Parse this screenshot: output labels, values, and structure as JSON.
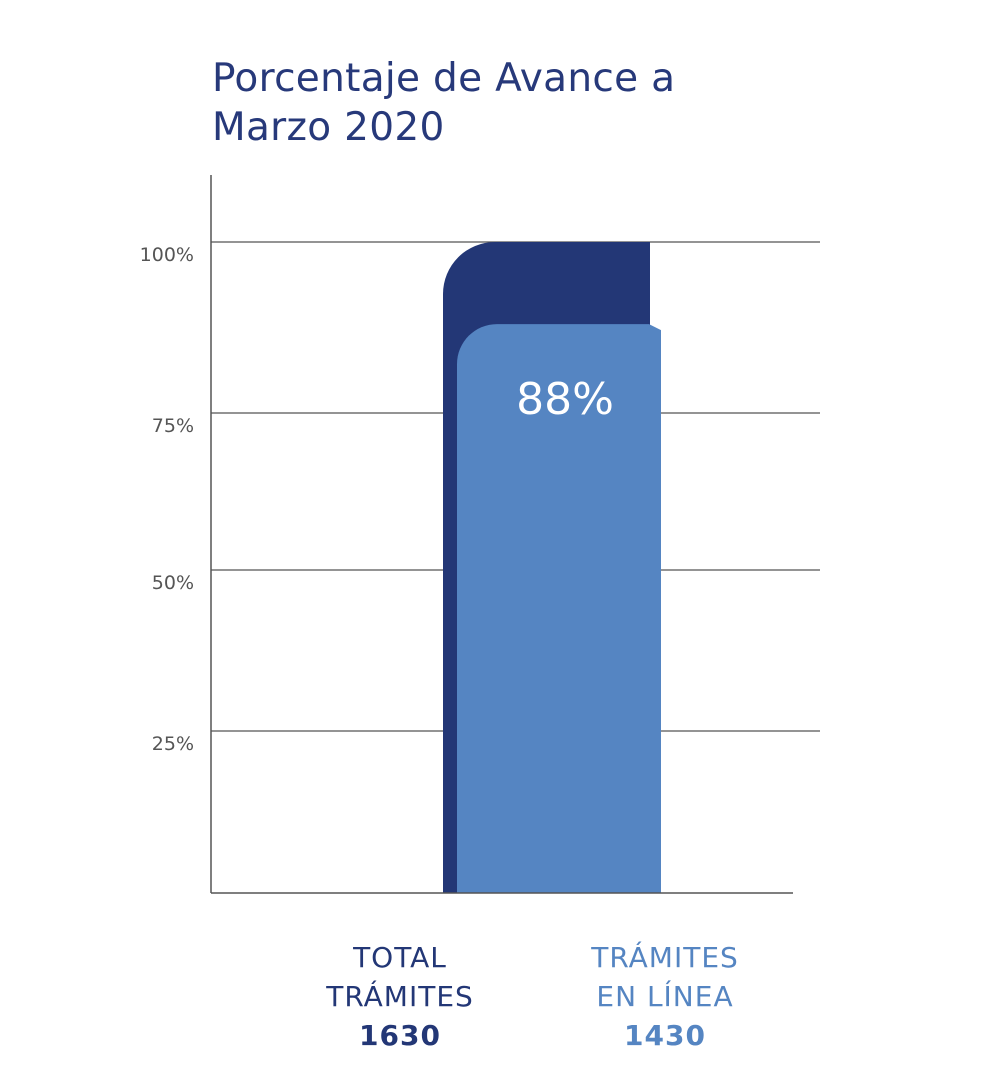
{
  "colors": {
    "title": "#27397a",
    "total_bar": "#233776",
    "online_bar": "#5585c2",
    "gridline": "#555555",
    "tick_label": "#555555",
    "bar_label": "#ffffff"
  },
  "chart_data": {
    "type": "bar",
    "title": "Porcentaje de Avance a Marzo 2020",
    "title_lines": [
      "Porcentaje de Avance a",
      "Marzo 2020"
    ],
    "xlabel": "",
    "ylabel": "",
    "ylim": [
      0,
      100
    ],
    "yticks": [
      {
        "value": 25,
        "label": "25%"
      },
      {
        "value": 50,
        "label": "50%"
      },
      {
        "value": 75,
        "label": "75%"
      },
      {
        "value": 100,
        "label": "100%"
      }
    ],
    "grid": true,
    "series": [
      {
        "name": "TOTAL TRÁMITES",
        "label_lines": [
          "TOTAL",
          "TRÁMITES"
        ],
        "count": "1630",
        "value": 100,
        "color": "#233776"
      },
      {
        "name": "TRÁMITES EN LÍNEA",
        "label_lines": [
          "TRÁMITES",
          "EN LÍNEA"
        ],
        "count": "1430",
        "value": 88,
        "data_label": "88%",
        "color": "#5585c2"
      }
    ],
    "legend_placement": "bottom"
  }
}
